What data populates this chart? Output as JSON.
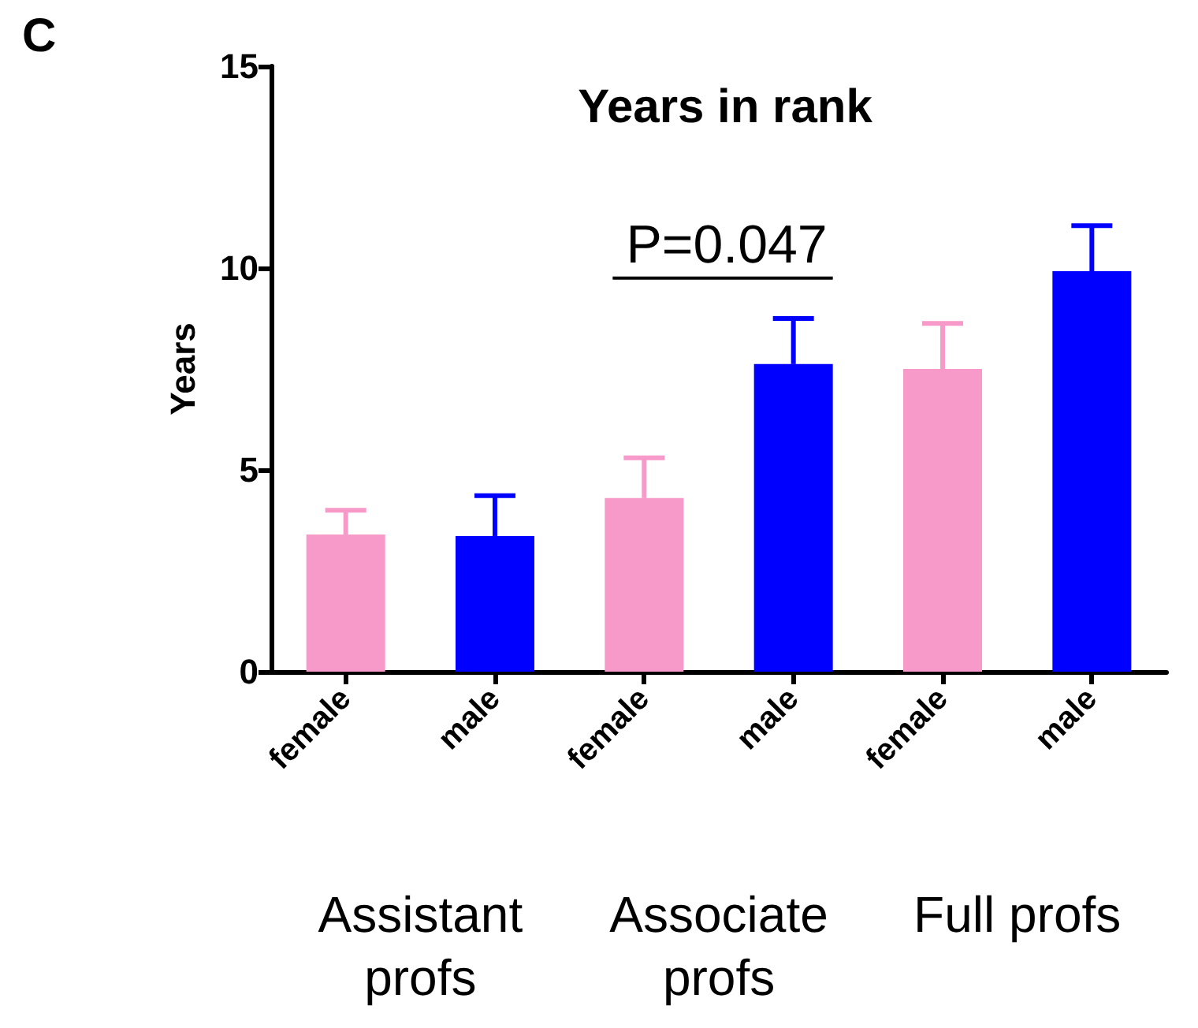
{
  "chart_data": {
    "type": "bar",
    "title": "Years in rank",
    "ylabel": "Years",
    "categories": [
      "female",
      "male",
      "female",
      "male",
      "female",
      "male"
    ],
    "values": [
      3.4,
      3.36,
      4.3,
      7.62,
      7.5,
      9.92
    ],
    "errors": [
      0.6,
      1.0,
      1.0,
      1.13,
      1.13,
      1.13
    ],
    "colors": [
      "#f799c9",
      "#0000ff",
      "#f799c9",
      "#0000ff",
      "#f799c9",
      "#0000ff"
    ],
    "ylim": [
      0,
      15
    ],
    "yticks": [
      0,
      5,
      10,
      15
    ],
    "grid": false,
    "annotations": [
      "C",
      "P=0.047",
      "Assistant\nprofs",
      "Associate\nprofs",
      "Full profs"
    ]
  }
}
